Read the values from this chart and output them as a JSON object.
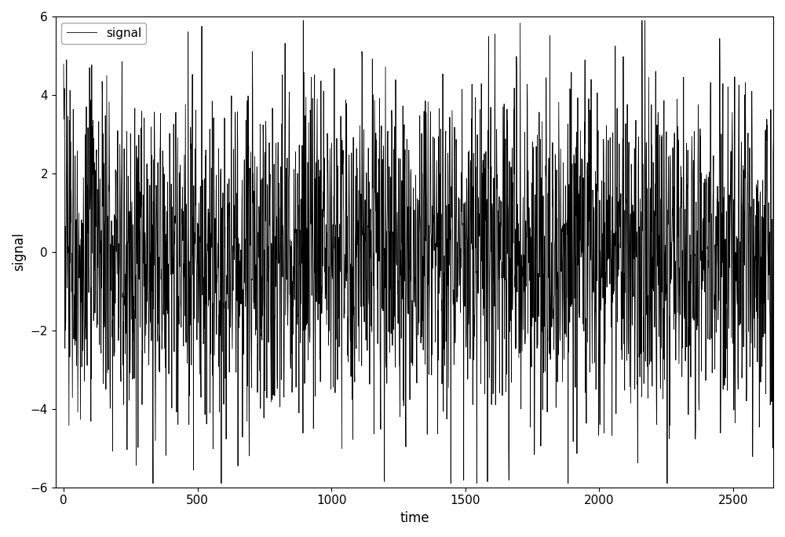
{
  "title": "",
  "xlabel": "time",
  "ylabel": "signal",
  "xlim": [
    -30,
    2650
  ],
  "ylim": [
    -6,
    6
  ],
  "xticks": [
    0,
    500,
    1000,
    1500,
    2000,
    2500
  ],
  "yticks": [
    -6,
    -4,
    -2,
    0,
    2,
    4,
    6
  ],
  "line_color": "black",
  "line_label": "signal",
  "line_width": 0.6,
  "n_points": 2700,
  "seed": 0,
  "background_color": "#ffffff",
  "figsize": [
    10.0,
    6.84
  ],
  "dpi": 100
}
